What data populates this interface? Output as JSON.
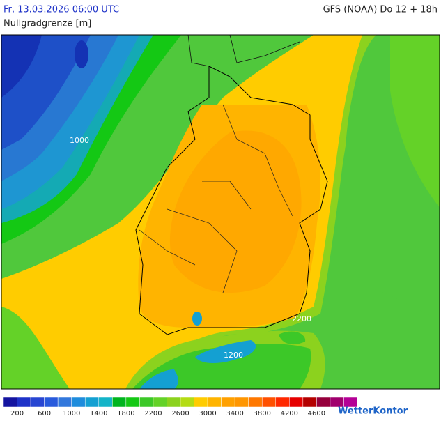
{
  "header": {
    "date": "Fr, 13.03.2026 06:00 UTC",
    "model": "GFS (NOAA) Do 12 + 18h",
    "subtitle": "Nullgradgrenze [m]"
  },
  "map": {
    "contour_labels": [
      "1000",
      "1200",
      "2200"
    ]
  },
  "legend": {
    "colors": [
      "#1414a0",
      "#1e32c8",
      "#2846d2",
      "#285adc",
      "#3278dc",
      "#1e8cdc",
      "#14a0d2",
      "#14b4c8",
      "#00b41e",
      "#14c814",
      "#3cc828",
      "#64d228",
      "#8cd21e",
      "#b4dc14",
      "#ffcc00",
      "#ffb400",
      "#ffa000",
      "#ff9600",
      "#ff7800",
      "#ff5000",
      "#ff2800",
      "#e60000",
      "#b40000",
      "#96003c",
      "#a0006e",
      "#b40096"
    ],
    "labels": [
      "200",
      "600",
      "1000",
      "1400",
      "1800",
      "2200",
      "2600",
      "3000",
      "3400",
      "3800",
      "4200",
      "4600"
    ]
  },
  "logo": "WetterKontor"
}
